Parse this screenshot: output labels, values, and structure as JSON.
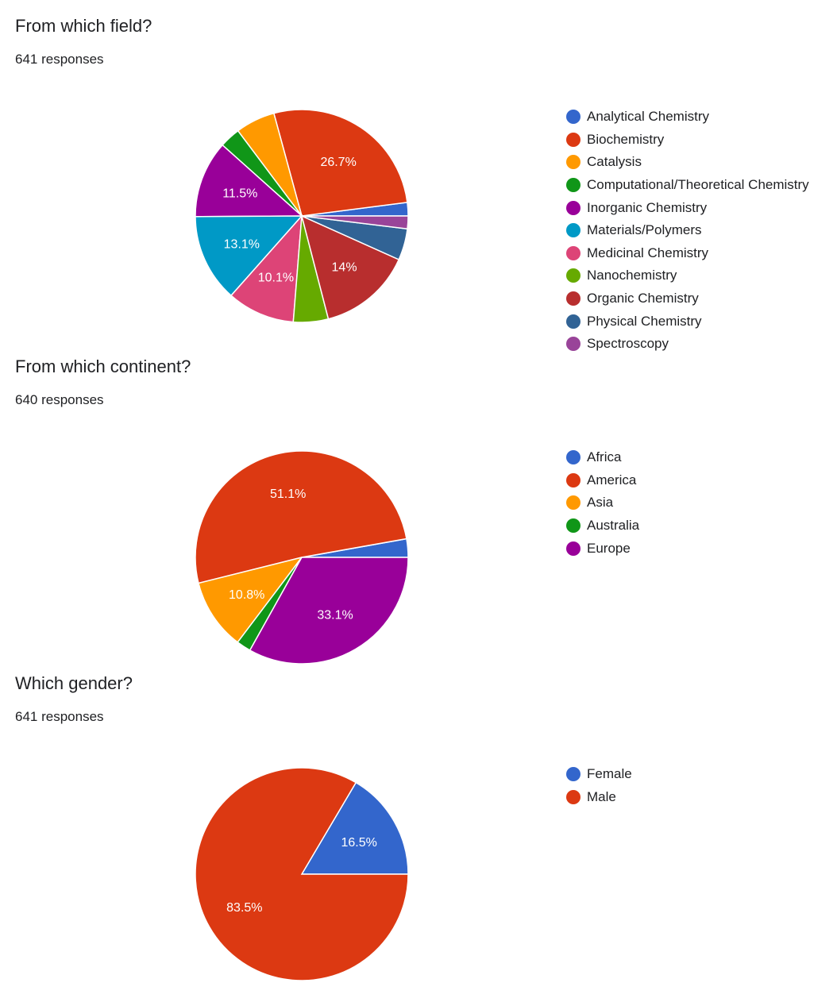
{
  "chart_data": [
    {
      "type": "pie",
      "title": "From which field?",
      "responses": "641 responses",
      "categories": [
        "Analytical Chemistry",
        "Biochemistry",
        "Catalysis",
        "Computational/Theoretical Chemistry",
        "Inorganic Chemistry",
        "Materials/Polymers",
        "Medicinal Chemistry",
        "Nanochemistry",
        "Organic Chemistry",
        "Physical Chemistry",
        "Spectroscopy"
      ],
      "values": [
        2.0,
        26.7,
        5.9,
        3.1,
        11.5,
        13.1,
        10.1,
        5.2,
        14.0,
        4.7,
        1.9
      ],
      "labels": [
        "",
        "26.7%",
        "",
        "",
        "11.5%",
        "13.1%",
        "10.1%",
        "",
        "14%",
        "",
        ""
      ],
      "colors": [
        "#3366cc",
        "#dc3912",
        "#ff9900",
        "#109618",
        "#990099",
        "#0099c6",
        "#dd4477",
        "#66aa00",
        "#b82e2e",
        "#316395",
        "#994499"
      ],
      "legend_position": "right"
    },
    {
      "type": "pie",
      "title": "From which continent?",
      "responses": "640 responses",
      "categories": [
        "Africa",
        "America",
        "Asia",
        "Australia",
        "Europe"
      ],
      "values": [
        2.8,
        51.1,
        10.8,
        2.2,
        33.1
      ],
      "labels": [
        "",
        "51.1%",
        "10.8%",
        "",
        "33.1%"
      ],
      "colors": [
        "#3366cc",
        "#dc3912",
        "#ff9900",
        "#109618",
        "#990099"
      ],
      "legend_position": "right"
    },
    {
      "type": "pie",
      "title": "Which gender?",
      "responses": "641 responses",
      "categories": [
        "Female",
        "Male"
      ],
      "values": [
        16.5,
        83.5
      ],
      "labels": [
        "16.5%",
        "83.5%"
      ],
      "colors": [
        "#3366cc",
        "#dc3912"
      ],
      "legend_position": "right"
    }
  ]
}
